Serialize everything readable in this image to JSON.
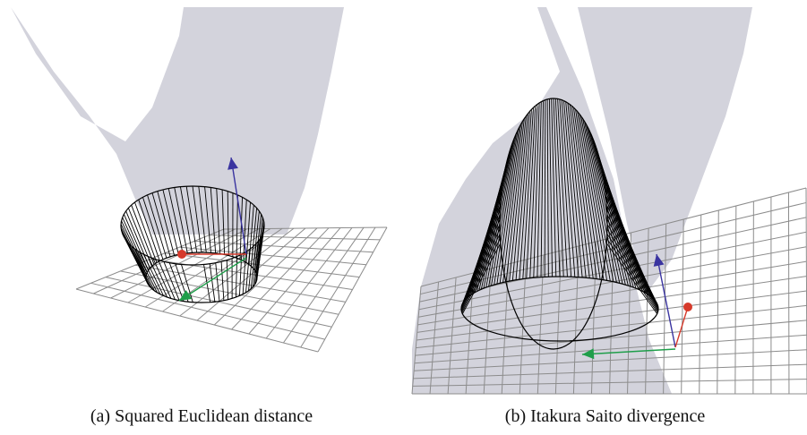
{
  "figure": {
    "panels": [
      {
        "id": "a",
        "caption": "(a) Squared Euclidean distance"
      },
      {
        "id": "b",
        "caption": "(b) Itakura Saito divergence"
      }
    ]
  },
  "colors": {
    "surface": "#d3d3dc",
    "grid": "#8c8c8c",
    "cone": "#000000",
    "axis_x": "#d63a2b",
    "axis_y": "#1f9e4a",
    "axis_z": "#3a34a0"
  }
}
